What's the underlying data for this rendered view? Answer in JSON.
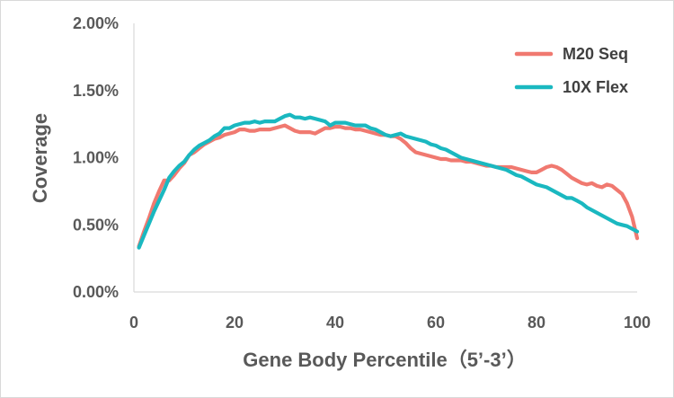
{
  "chart_data": {
    "type": "line",
    "xlabel": "Gene Body Percentile（5’-3’）",
    "ylabel": "Coverage",
    "xlim": [
      0,
      100
    ],
    "ylim": [
      0,
      0.02
    ],
    "x_ticks": [
      0,
      20,
      40,
      60,
      80,
      100
    ],
    "x_tick_labels": [
      "0",
      "20",
      "40",
      "60",
      "80",
      "100"
    ],
    "y_ticks": [
      0,
      0.005,
      0.01,
      0.015,
      0.02
    ],
    "y_tick_labels": [
      "0.00%",
      "0.50%",
      "1.00%",
      "1.50%",
      "2.00%"
    ],
    "grid": false,
    "legend_position": "top-right",
    "x": [
      1,
      2,
      3,
      4,
      5,
      6,
      7,
      8,
      9,
      10,
      11,
      12,
      13,
      14,
      15,
      16,
      17,
      18,
      19,
      20,
      21,
      22,
      23,
      24,
      25,
      26,
      27,
      28,
      29,
      30,
      31,
      32,
      33,
      34,
      35,
      36,
      37,
      38,
      39,
      40,
      41,
      42,
      43,
      44,
      45,
      46,
      47,
      48,
      49,
      50,
      51,
      52,
      53,
      54,
      55,
      56,
      57,
      58,
      59,
      60,
      61,
      62,
      63,
      64,
      65,
      66,
      67,
      68,
      69,
      70,
      71,
      72,
      73,
      74,
      75,
      76,
      77,
      78,
      79,
      80,
      81,
      82,
      83,
      84,
      85,
      86,
      87,
      88,
      89,
      90,
      91,
      92,
      93,
      94,
      95,
      96,
      97,
      98,
      99,
      100
    ],
    "series": [
      {
        "name": "M20 Seq",
        "color": "#f07970",
        "values": [
          0.0034,
          0.0045,
          0.0055,
          0.0066,
          0.0075,
          0.0083,
          0.0083,
          0.0087,
          0.0092,
          0.0096,
          0.0102,
          0.0104,
          0.0107,
          0.011,
          0.0112,
          0.0114,
          0.0115,
          0.0117,
          0.0118,
          0.0119,
          0.0121,
          0.0121,
          0.012,
          0.012,
          0.0121,
          0.0121,
          0.0121,
          0.0122,
          0.0123,
          0.0124,
          0.0122,
          0.012,
          0.0119,
          0.0119,
          0.0119,
          0.0118,
          0.012,
          0.0122,
          0.0122,
          0.0123,
          0.0123,
          0.0122,
          0.0122,
          0.0121,
          0.0121,
          0.012,
          0.0119,
          0.0118,
          0.0117,
          0.0117,
          0.0116,
          0.0116,
          0.0114,
          0.0111,
          0.0107,
          0.0104,
          0.0103,
          0.0102,
          0.0101,
          0.01,
          0.0099,
          0.0099,
          0.0098,
          0.0098,
          0.0098,
          0.0097,
          0.0097,
          0.0096,
          0.0095,
          0.0094,
          0.0094,
          0.0093,
          0.0093,
          0.0093,
          0.0093,
          0.0092,
          0.0091,
          0.009,
          0.0089,
          0.0089,
          0.0091,
          0.0093,
          0.0094,
          0.0093,
          0.0091,
          0.0088,
          0.0085,
          0.0083,
          0.0081,
          0.008,
          0.0081,
          0.0079,
          0.0078,
          0.008,
          0.0079,
          0.0076,
          0.0073,
          0.0066,
          0.0056,
          0.004
        ]
      },
      {
        "name": "10X Flex",
        "color": "#1ab8c0",
        "values": [
          0.0033,
          0.0042,
          0.0051,
          0.006,
          0.0068,
          0.0076,
          0.0085,
          0.009,
          0.0094,
          0.0097,
          0.0102,
          0.0106,
          0.0109,
          0.0111,
          0.0113,
          0.0116,
          0.0118,
          0.0122,
          0.0122,
          0.0124,
          0.0125,
          0.0126,
          0.0126,
          0.0127,
          0.0126,
          0.0127,
          0.0127,
          0.0127,
          0.0129,
          0.0131,
          0.0132,
          0.013,
          0.013,
          0.0129,
          0.013,
          0.0129,
          0.0128,
          0.0127,
          0.0124,
          0.0126,
          0.0126,
          0.0126,
          0.0125,
          0.0124,
          0.0124,
          0.0124,
          0.0122,
          0.0121,
          0.0119,
          0.0117,
          0.0116,
          0.0117,
          0.0118,
          0.0116,
          0.0115,
          0.0114,
          0.0113,
          0.0112,
          0.011,
          0.0109,
          0.0107,
          0.0106,
          0.0104,
          0.0102,
          0.01,
          0.0099,
          0.0098,
          0.0097,
          0.0096,
          0.0095,
          0.0094,
          0.0093,
          0.0092,
          0.0091,
          0.0089,
          0.0087,
          0.0086,
          0.0084,
          0.0082,
          0.008,
          0.0079,
          0.0078,
          0.0076,
          0.0074,
          0.0072,
          0.007,
          0.007,
          0.0068,
          0.0066,
          0.0063,
          0.0061,
          0.0059,
          0.0057,
          0.0055,
          0.0053,
          0.0051,
          0.005,
          0.0049,
          0.0047,
          0.0045
        ]
      }
    ]
  }
}
